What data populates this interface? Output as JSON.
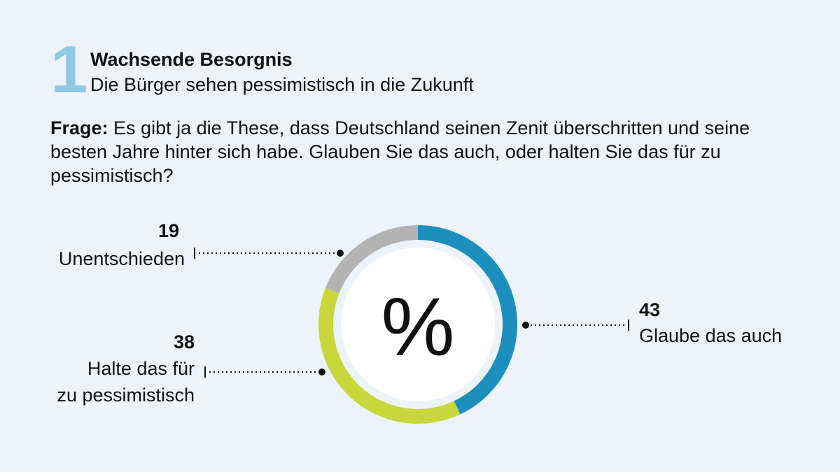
{
  "header": {
    "number": "1",
    "title": "Wachsende Besorgnis",
    "subtitle": "Die Bürger sehen pessimistisch in die Zukunft"
  },
  "question": {
    "label": "Frage:",
    "text": "Es gibt ja die These, dass Deutschland seinen Zenit überschritten und seine besten  Jahre hinter sich habe. Glauben Sie das auch, oder halten Sie das für zu pessimistisch?"
  },
  "chart_data": {
    "type": "pie",
    "center_label": "%",
    "categories": [
      "Glaube das auch",
      "Halte das für zu pessimistisch",
      "Unentschieden"
    ],
    "values": [
      43,
      38,
      19
    ],
    "colors": [
      "#1c8fbd",
      "#c6d83c",
      "#b3b3b3"
    ],
    "legend": "none"
  },
  "labels": {
    "glaube": {
      "value": "43",
      "line1": "Glaube das auch"
    },
    "halte": {
      "value": "38",
      "line1": "Halte das für",
      "line2": "zu pessimistisch"
    },
    "unent": {
      "value": "19",
      "line1": "Unentschieden"
    }
  }
}
